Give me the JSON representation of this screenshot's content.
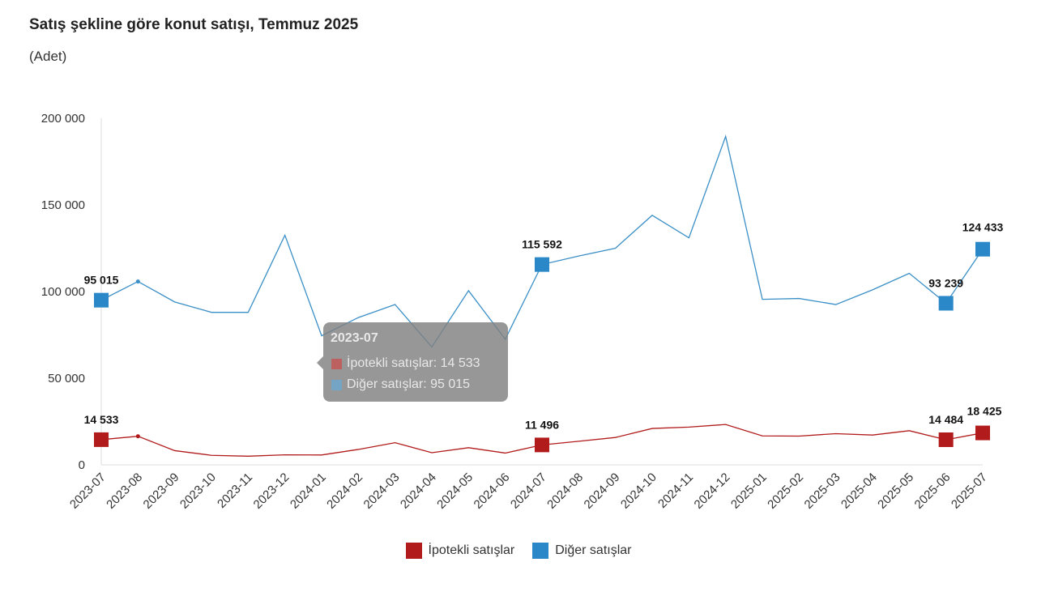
{
  "title": "Satış şekline göre konut satışı, Temmuz 2025",
  "subtitle": "(Adet)",
  "colors": {
    "ipotekli": "#b11b1b",
    "diger": "#2a87c8",
    "diger_line": "#3a8fc6",
    "axis": "#dddddd"
  },
  "chart_data": {
    "type": "line",
    "title": "Satış şekline göre konut satışı, Temmuz 2025",
    "ylabel": "(Adet)",
    "ylim": [
      0,
      200000
    ],
    "yticks": [
      0,
      50000,
      100000,
      150000,
      200000
    ],
    "ytick_labels": [
      "0",
      "50 000",
      "100 000",
      "150 000",
      "200 000"
    ],
    "categories": [
      "2023-07",
      "2023-08",
      "2023-09",
      "2023-10",
      "2023-11",
      "2023-12",
      "2024-01",
      "2024-02",
      "2024-03",
      "2024-04",
      "2024-05",
      "2024-06",
      "2024-07",
      "2024-08",
      "2024-09",
      "2024-10",
      "2024-11",
      "2024-12",
      "2025-01",
      "2025-02",
      "2025-03",
      "2025-04",
      "2025-05",
      "2025-06",
      "2025-07"
    ],
    "series": [
      {
        "name": "İpotekli satışlar",
        "values": [
          14533,
          16500,
          8200,
          5500,
          5000,
          5800,
          5700,
          8900,
          12800,
          7000,
          9900,
          6800,
          11496,
          13600,
          15800,
          21000,
          21800,
          23300,
          16700,
          16600,
          18000,
          17200,
          19700,
          14484,
          18425
        ],
        "labels": [
          {
            "index": 0,
            "text": "14 533"
          },
          {
            "index": 12,
            "text": "11 496"
          },
          {
            "index": 23,
            "text": "14 484"
          },
          {
            "index": 24,
            "text": "18 425"
          }
        ]
      },
      {
        "name": "Diğer satışlar",
        "values": [
          95015,
          105800,
          94000,
          88000,
          88000,
          132500,
          74500,
          85000,
          92500,
          68000,
          100500,
          72500,
          115592,
          120500,
          125000,
          144000,
          131000,
          189500,
          95500,
          96000,
          92500,
          101000,
          110500,
          93239,
          124433
        ],
        "labels": [
          {
            "index": 0,
            "text": "95 015"
          },
          {
            "index": 12,
            "text": "115 592"
          },
          {
            "index": 23,
            "text": "93 239"
          },
          {
            "index": 24,
            "text": "124 433"
          }
        ]
      }
    ],
    "legend": [
      "İpotekli satışlar",
      "Diğer satışlar"
    ],
    "legend_position": "bottom"
  },
  "tooltip": {
    "title": "2023-07",
    "row1": "İpotekli satışlar: 14 533",
    "row2": "Diğer satışlar: 95 015"
  }
}
